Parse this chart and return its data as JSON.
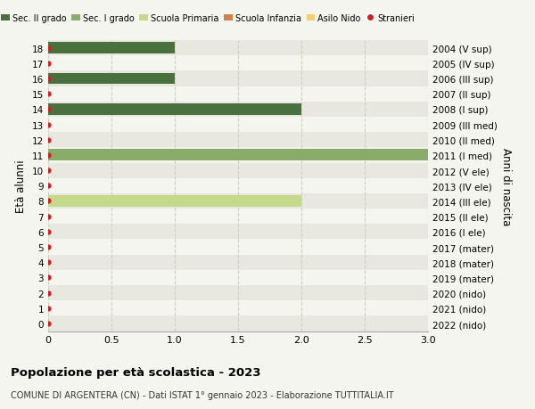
{
  "ages": [
    0,
    1,
    2,
    3,
    4,
    5,
    6,
    7,
    8,
    9,
    10,
    11,
    12,
    13,
    14,
    15,
    16,
    17,
    18
  ],
  "right_labels": [
    "2022 (nido)",
    "2021 (nido)",
    "2020 (nido)",
    "2019 (mater)",
    "2018 (mater)",
    "2017 (mater)",
    "2016 (I ele)",
    "2015 (II ele)",
    "2014 (III ele)",
    "2013 (IV ele)",
    "2012 (V ele)",
    "2011 (I med)",
    "2010 (II med)",
    "2009 (III med)",
    "2008 (I sup)",
    "2007 (II sup)",
    "2006 (III sup)",
    "2005 (IV sup)",
    "2004 (V sup)"
  ],
  "bars": [
    {
      "age": 18,
      "value": 1.0,
      "color": "#4a7040"
    },
    {
      "age": 16,
      "value": 1.0,
      "color": "#4a7040"
    },
    {
      "age": 14,
      "value": 2.0,
      "color": "#4a7040"
    },
    {
      "age": 11,
      "value": 3.0,
      "color": "#8aac6a"
    },
    {
      "age": 8,
      "value": 2.0,
      "color": "#c5d98a"
    }
  ],
  "dot_color": "#cc2222",
  "xlim": [
    0,
    3.0
  ],
  "xticks": [
    0,
    0.5,
    1.0,
    1.5,
    2.0,
    2.5,
    3.0
  ],
  "ylabel": "Età alunni",
  "right_ylabel": "Anni di nascita",
  "legend_items": [
    {
      "label": "Sec. II grado",
      "color": "#4a7040",
      "type": "patch"
    },
    {
      "label": "Sec. I grado",
      "color": "#8aac6a",
      "type": "patch"
    },
    {
      "label": "Scuola Primaria",
      "color": "#c5d98a",
      "type": "patch"
    },
    {
      "label": "Scuola Infanzia",
      "color": "#d4824a",
      "type": "patch"
    },
    {
      "label": "Asilo Nido",
      "color": "#f0d070",
      "type": "patch"
    },
    {
      "label": "Stranieri",
      "color": "#cc2222",
      "type": "dot"
    }
  ],
  "title": "Popolazione per età scolastica - 2023",
  "subtitle": "COMUNE DI ARGENTERA (CN) - Dati ISTAT 1° gennaio 2023 - Elaborazione TUTTITALIA.IT",
  "bg_color": "#f5f5ef",
  "row_colors": [
    "#e8e8e0",
    "#f5f5ef"
  ],
  "grid_color": "#d0d0c0",
  "bar_height": 0.75
}
